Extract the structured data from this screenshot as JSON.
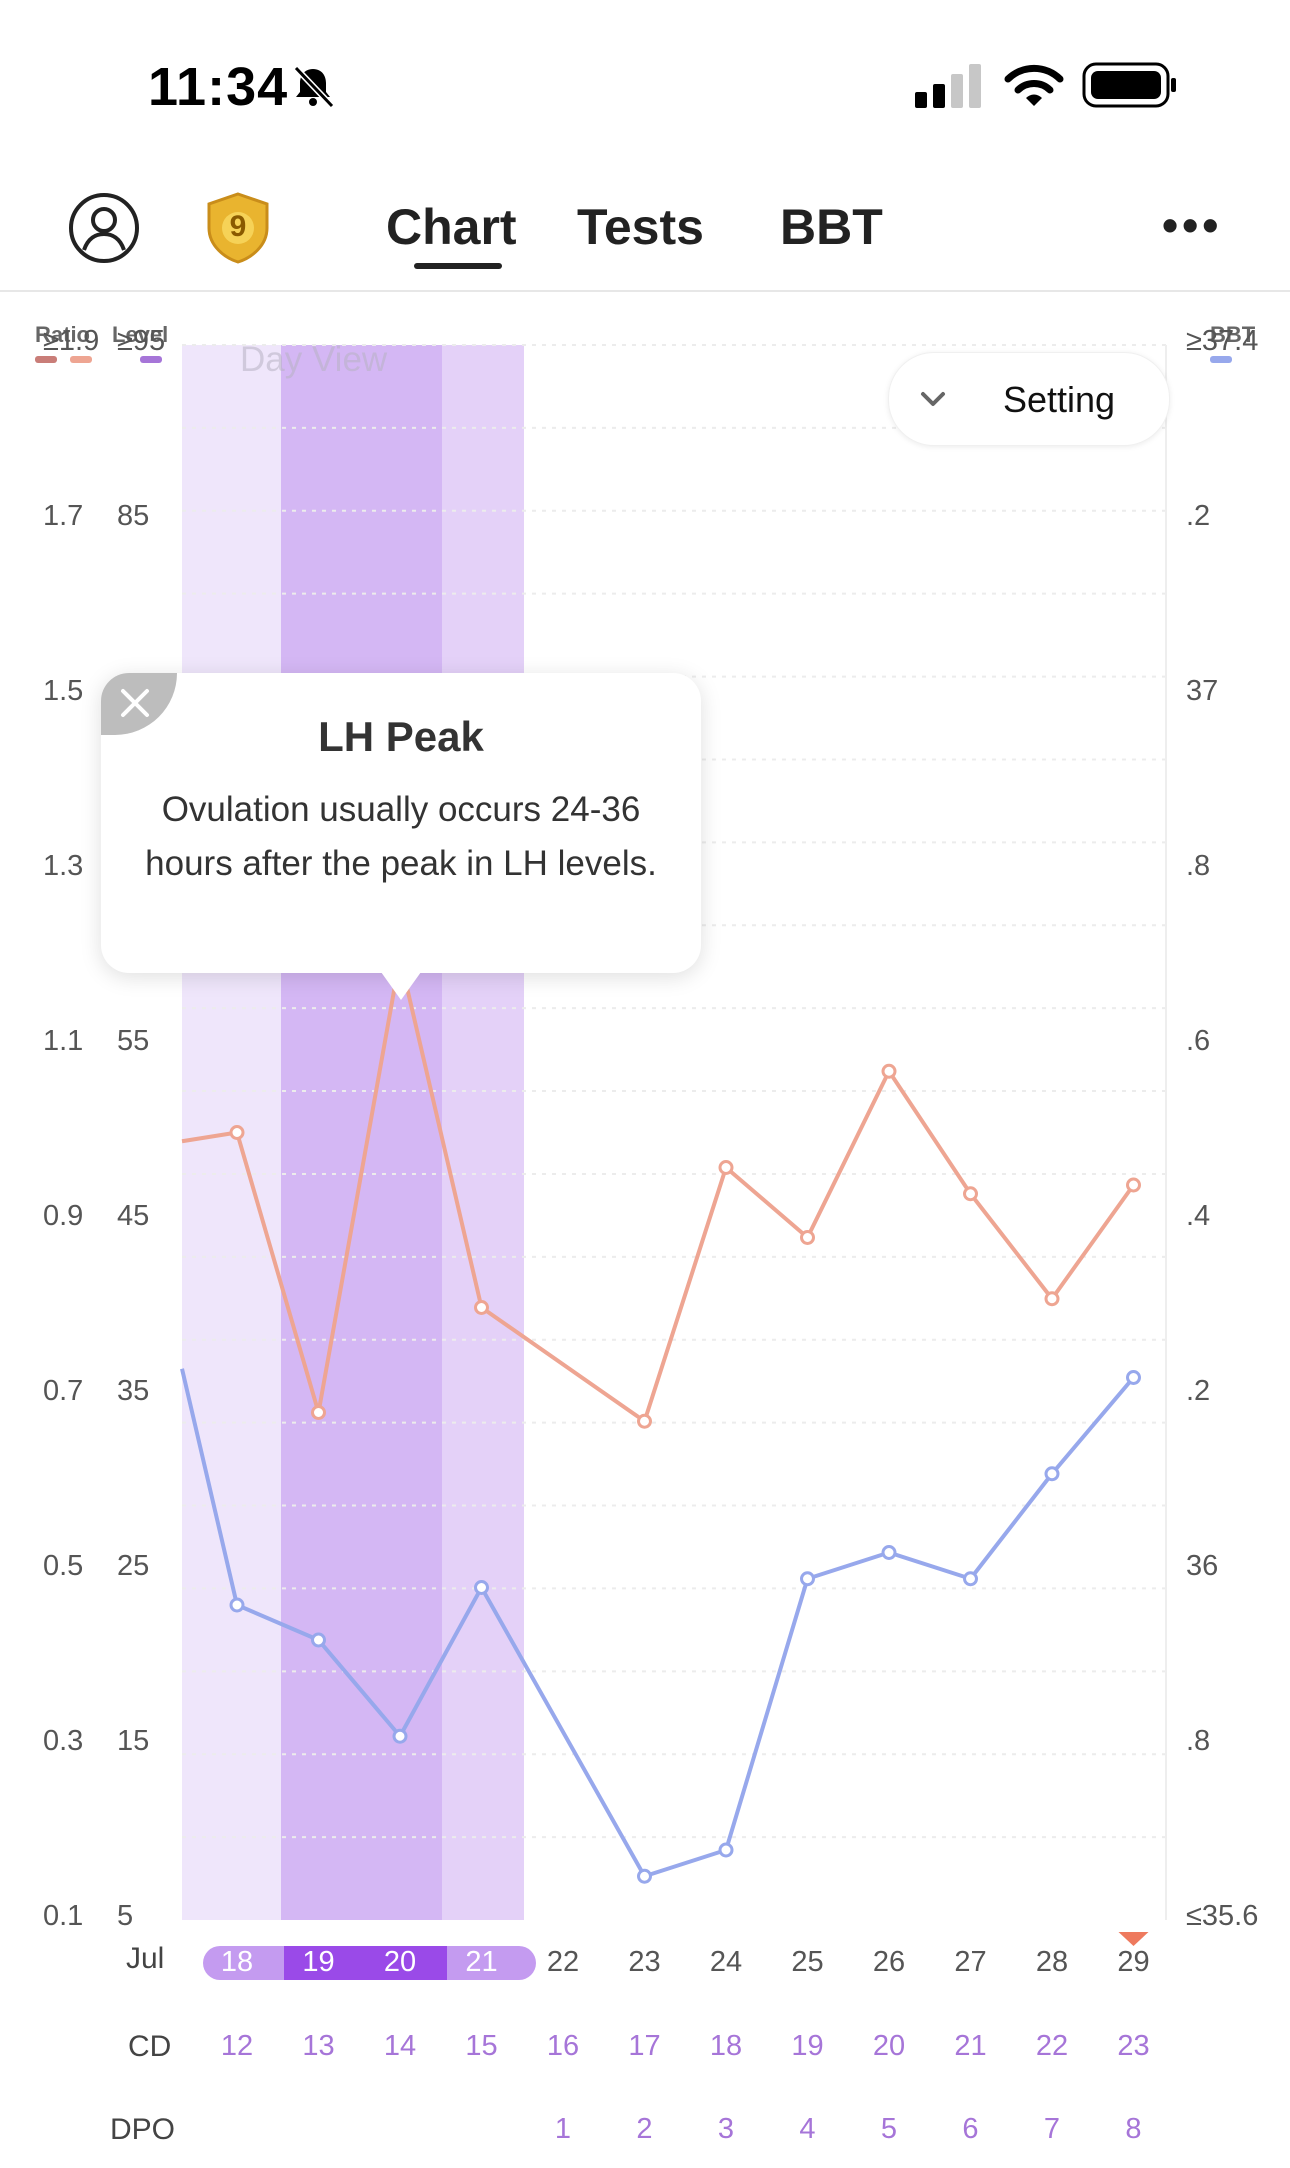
{
  "status_bar": {
    "time": "11:34"
  },
  "header": {
    "badge_number": "9",
    "tabs": [
      {
        "label": "Chart",
        "active": true
      },
      {
        "label": "Tests",
        "active": false
      },
      {
        "label": "BBT",
        "active": false
      }
    ],
    "more_label": "•••"
  },
  "legend": {
    "ratio": "Ratio",
    "level": "Level",
    "bbt": "BBT"
  },
  "y_ticks": {
    "ratio": [
      "≥1.9",
      "1.7",
      "1.5",
      "1.3",
      "1.1",
      "0.9",
      "0.7",
      "0.5",
      "0.3",
      "0.1"
    ],
    "level": [
      "≥95",
      "85",
      "",
      "",
      "55",
      "45",
      "35",
      "25",
      "15",
      "5"
    ],
    "bbt": [
      "≥37.4",
      ".2",
      "37",
      ".8",
      ".6",
      ".4",
      ".2",
      "36",
      ".8",
      "≤35.6"
    ]
  },
  "setting_label": "Setting",
  "day_view_label": "Day View",
  "tooltip": {
    "title": "LH Peak",
    "body": "Ovulation usually occurs 24-36 hours after the peak in LH levels."
  },
  "x_axis": {
    "month_label": "Jul",
    "cd_label": "CD",
    "dpo_label": "DPO",
    "dates": [
      "18",
      "19",
      "20",
      "21",
      "22",
      "23",
      "24",
      "25",
      "26",
      "27",
      "28",
      "29"
    ],
    "cd": [
      "12",
      "13",
      "14",
      "15",
      "16",
      "17",
      "18",
      "19",
      "20",
      "21",
      "22",
      "23"
    ],
    "dpo": [
      "",
      "",
      "",
      "",
      "1",
      "2",
      "3",
      "4",
      "5",
      "6",
      "7",
      "8"
    ]
  },
  "colors": {
    "lh_ratio_line": "#eea592",
    "bbt_line": "#97a8ec",
    "fertile_light": "#efe6fb",
    "fertile_mid": "#e4d1f8",
    "peak_band": "#d4b7f4",
    "peak_marker": "#ee7a5e",
    "today_marker": "#ee7a5e"
  },
  "chart_data": {
    "type": "line",
    "categories": [
      "Jul 18",
      "Jul 19",
      "Jul 20",
      "Jul 21",
      "Jul 22",
      "Jul 23",
      "Jul 24",
      "Jul 25",
      "Jul 26",
      "Jul 27",
      "Jul 28",
      "Jul 29"
    ],
    "series": [
      {
        "name": "Ratio",
        "axis": "left_ratio",
        "values": [
          1.0,
          0.68,
          1.2,
          0.8,
          null,
          0.67,
          0.96,
          0.88,
          1.07,
          0.93,
          0.81,
          0.94
        ]
      },
      {
        "name": "BBT",
        "axis": "right_bbt",
        "values": [
          35.96,
          35.92,
          35.81,
          35.98,
          null,
          35.65,
          35.68,
          35.99,
          36.02,
          35.99,
          36.11,
          36.22
        ]
      }
    ],
    "left_ratio_axis": {
      "ticks": [
        "≥1.9",
        "1.7",
        "1.5",
        "1.3",
        "1.1",
        "0.9",
        "0.7",
        "0.5",
        "0.3",
        "0.1"
      ],
      "ylim": [
        0.1,
        1.9
      ]
    },
    "left_level_axis": {
      "ticks": [
        "≥95",
        "85",
        "55",
        "45",
        "35",
        "25",
        "15",
        "5"
      ],
      "ylim": [
        5,
        95
      ]
    },
    "right_bbt_axis": {
      "ticks": [
        "≥37.4",
        ".2",
        "37",
        ".8",
        ".6",
        ".4",
        ".2",
        "36",
        ".8",
        "≤35.6"
      ],
      "ylim": [
        35.6,
        37.4
      ]
    },
    "annotations": [
      "LH Peak on Jul 20"
    ]
  }
}
